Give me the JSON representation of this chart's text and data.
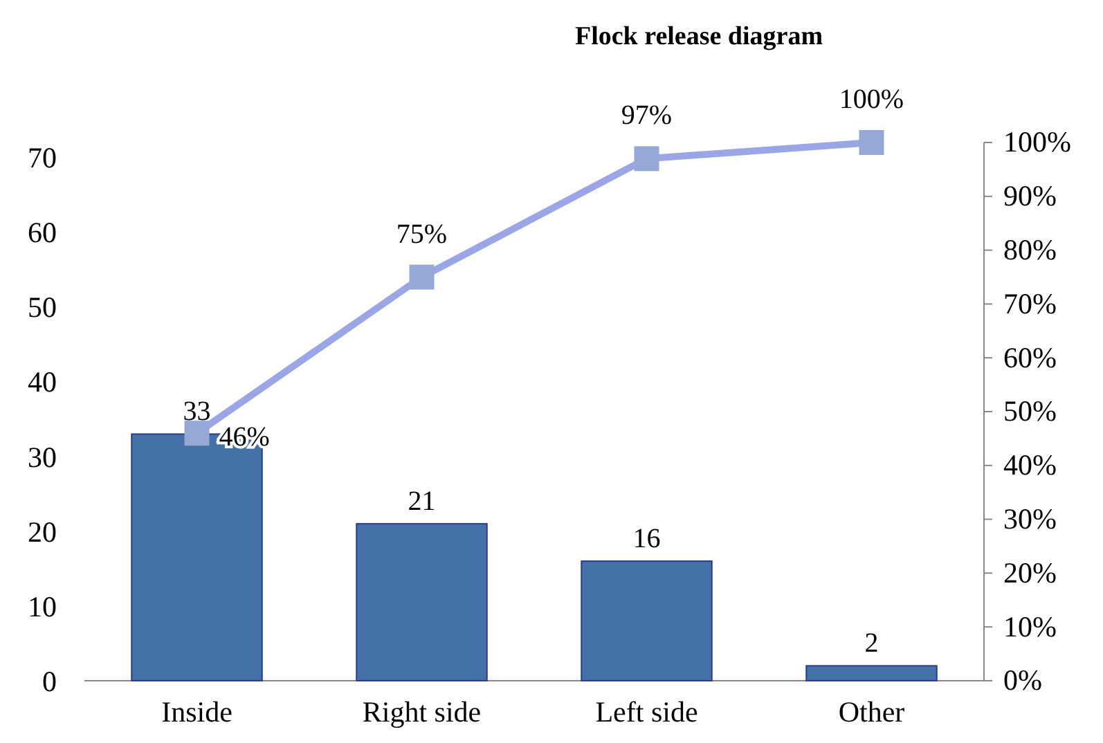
{
  "chart_data": {
    "type": "bar",
    "title": "Flock release diagram",
    "categories": [
      "Inside",
      "Right side",
      "Left side",
      "Other"
    ],
    "series": [
      {
        "color": "#4472a8",
        "values": [
          33,
          21,
          16,
          2
        ],
        "value_labels": [
          "33",
          "21",
          "16",
          "2"
        ]
      },
      {
        "type": "line",
        "axis": "y2",
        "color": "#9ba6e6",
        "marker": "square",
        "values": [
          46,
          75,
          97,
          100
        ],
        "value_labels": [
          "46%",
          "75%",
          "97%",
          "100%"
        ]
      }
    ],
    "ylim": [
      0,
      72
    ],
    "yticks": [
      0,
      10,
      20,
      30,
      40,
      50,
      60,
      70
    ],
    "y2lim": [
      0,
      100
    ],
    "y2ticks": [
      {
        "value": 0,
        "label": "0%"
      },
      {
        "value": 10,
        "label": "10%"
      },
      {
        "value": 20,
        "label": "20%"
      },
      {
        "value": 30,
        "label": "30%"
      },
      {
        "value": 40,
        "label": "40%"
      },
      {
        "value": 50,
        "label": "50%"
      },
      {
        "value": 60,
        "label": "60%"
      },
      {
        "value": 70,
        "label": "70%"
      },
      {
        "value": 80,
        "label": "80%"
      },
      {
        "value": 90,
        "label": "90%"
      },
      {
        "value": 100,
        "label": "100%"
      }
    ],
    "grid": false
  }
}
